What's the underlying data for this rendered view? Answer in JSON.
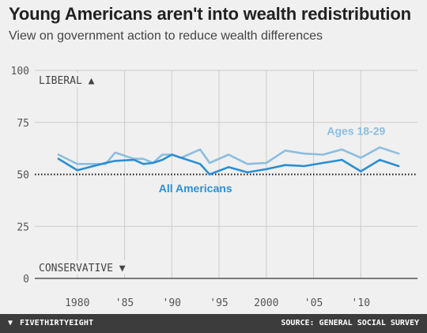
{
  "header": {
    "title": "Young Americans aren't into wealth redistribution",
    "subtitle": "View on government action to reduce wealth differences"
  },
  "footer": {
    "brand": "FIVETHIRTYEIGHT",
    "brand_icon": "fivethirtyeight-logo-icon",
    "source": "SOURCE: GENERAL SOCIAL SURVEY"
  },
  "colors": {
    "background": "#f0f0f0",
    "all_americans": "#2b8fd1",
    "ages_18_29": "#8cbedf",
    "grid": "#cccccc",
    "axis": "#333333",
    "footer": "#3c3c3c"
  },
  "chart_data": {
    "type": "line",
    "title": "Young Americans aren't into wealth redistribution",
    "subtitle": "View on government action to reduce wealth differences",
    "xlim": [
      1975.5,
      2016
    ],
    "ylim": [
      0,
      100
    ],
    "x_ticks": [
      {
        "value": 1980,
        "label": "1980"
      },
      {
        "value": 1985,
        "label": "'85"
      },
      {
        "value": 1990,
        "label": "'90"
      },
      {
        "value": 1995,
        "label": "'95"
      },
      {
        "value": 2000,
        "label": "2000"
      },
      {
        "value": 2005,
        "label": "'05"
      },
      {
        "value": 2010,
        "label": "'10"
      }
    ],
    "y_ticks": [
      {
        "value": 0,
        "label": "0"
      },
      {
        "value": 25,
        "label": "25"
      },
      {
        "value": 50,
        "label": "50"
      },
      {
        "value": 75,
        "label": "75"
      },
      {
        "value": 100,
        "label": "100"
      }
    ],
    "reference_line": 50,
    "grid": true,
    "axis_annotations": [
      {
        "label": "LIBERAL ▲",
        "y": 95
      },
      {
        "label": "CONSERVATIVE ▼",
        "y": 5
      }
    ],
    "series": [
      {
        "name": "All Americans",
        "color": "#2b8fd1",
        "label_position": {
          "x": 1992.5,
          "y": 41.5
        },
        "points": [
          [
            1978,
            57.5
          ],
          [
            1980,
            52
          ],
          [
            1983,
            55.5
          ],
          [
            1984,
            56.5
          ],
          [
            1986,
            57
          ],
          [
            1987,
            55
          ],
          [
            1988,
            55.5
          ],
          [
            1989,
            57
          ],
          [
            1990,
            59.5
          ],
          [
            1991,
            58
          ],
          [
            1993,
            55
          ],
          [
            1994,
            50
          ],
          [
            1996,
            53.5
          ],
          [
            1998,
            51
          ],
          [
            2000,
            52.5
          ],
          [
            2002,
            54.5
          ],
          [
            2004,
            54
          ],
          [
            2006,
            55.5
          ],
          [
            2008,
            57
          ],
          [
            2010,
            51.5
          ],
          [
            2012,
            57
          ],
          [
            2014,
            54
          ]
        ]
      },
      {
        "name": "Ages 18-29",
        "color": "#8cbedf",
        "label_position": {
          "x": 2009.5,
          "y": 69
        },
        "points": [
          [
            1978,
            59.5
          ],
          [
            1980,
            55
          ],
          [
            1983,
            55
          ],
          [
            1984,
            60.5
          ],
          [
            1986,
            57.5
          ],
          [
            1987,
            57.5
          ],
          [
            1988,
            55.5
          ],
          [
            1989,
            59.5
          ],
          [
            1990,
            59.5
          ],
          [
            1991,
            58
          ],
          [
            1993,
            62
          ],
          [
            1994,
            55.5
          ],
          [
            1996,
            59.5
          ],
          [
            1998,
            55
          ],
          [
            2000,
            55.5
          ],
          [
            2002,
            61.5
          ],
          [
            2004,
            60
          ],
          [
            2006,
            59.5
          ],
          [
            2008,
            62
          ],
          [
            2010,
            58
          ],
          [
            2012,
            63
          ],
          [
            2014,
            60
          ]
        ]
      }
    ]
  }
}
